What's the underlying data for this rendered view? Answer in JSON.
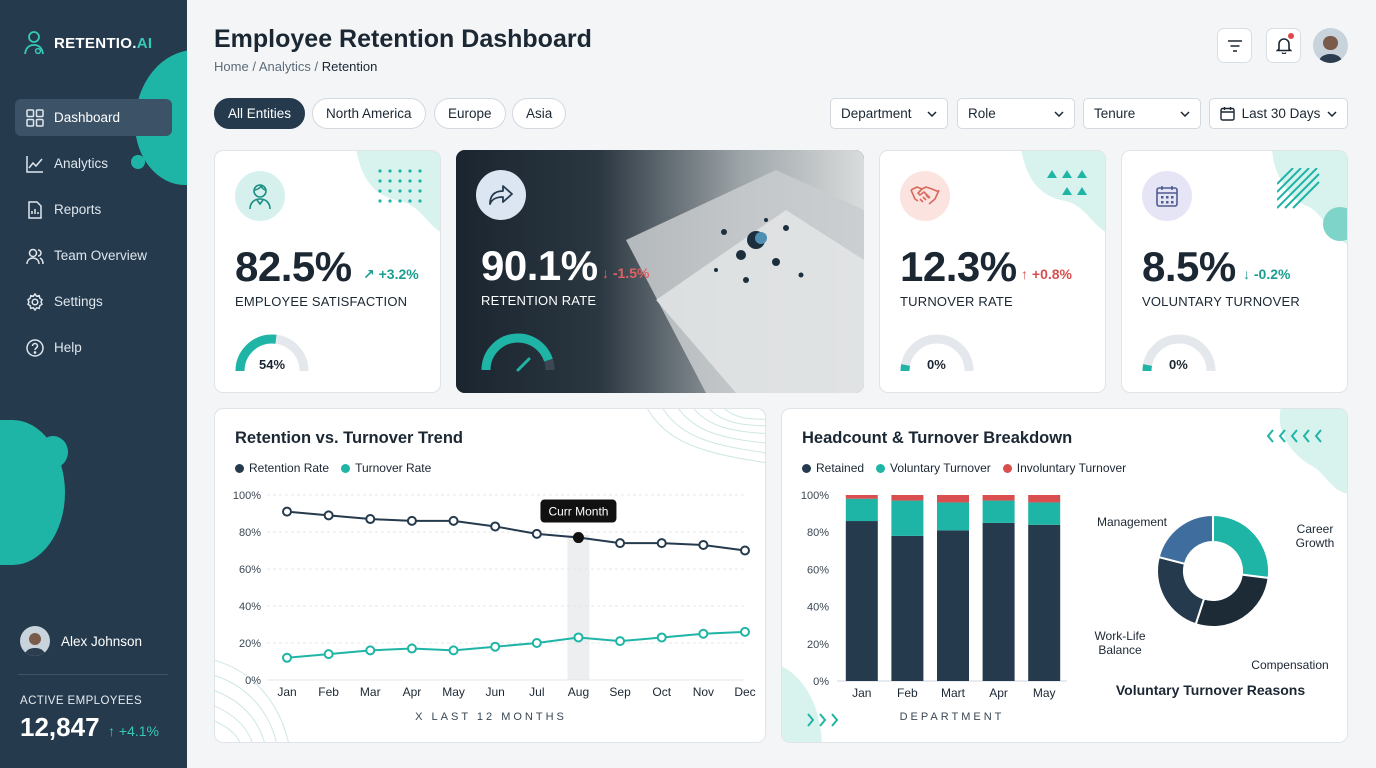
{
  "sidebar": {
    "logo_main": "RETENTIO.",
    "logo_ai": "AI",
    "nav": [
      {
        "label": "Dashboard",
        "icon": "grid-icon",
        "active": true
      },
      {
        "label": "Analytics",
        "icon": "line-chart-icon"
      },
      {
        "label": "Reports",
        "icon": "document-icon"
      },
      {
        "label": "Team Overview",
        "icon": "users-icon"
      },
      {
        "label": "Settings",
        "icon": "gear-icon"
      },
      {
        "label": "Help",
        "icon": "help-icon"
      }
    ],
    "user_name": "Alex Johnson",
    "active_employees_label": "ACTIVE EMPLOYEES",
    "active_employees_value": "12,847",
    "active_employees_delta": "↑ +4.1%"
  },
  "header": {
    "title": "Employee Retention Dashboard",
    "breadcrumb": [
      "Home",
      "Analytics",
      "Retention"
    ]
  },
  "filters": {
    "entities": [
      "All Entities",
      "North America",
      "Europe",
      "Asia"
    ],
    "selects": [
      "Department",
      "Role",
      "Tenure"
    ],
    "date_range": "Last 30 Days"
  },
  "kpis": [
    {
      "value": "82.5%",
      "delta": "↗ +3.2%",
      "label": "EMPLOYEE SATISFACTION",
      "gauge_text": "54%",
      "gauge_fill": 0.54
    },
    {
      "value": "90.1%",
      "delta": "↓ -1.5%",
      "label": "RETENTION RATE",
      "gauge_fill": 0.9
    },
    {
      "value": "12.3%",
      "delta": "↑ +0.8%",
      "label": "TURNOVER RATE",
      "gauge_text": "0%",
      "gauge_fill": 0.06
    },
    {
      "value": "8.5%",
      "delta": "↓ -0.2%",
      "label": "VOLUNTARY TURNOVER",
      "gauge_text": "0%",
      "gauge_fill": 0.06
    }
  ],
  "colors": {
    "navy": "#253a4d",
    "teal": "#1fb5a6",
    "red": "#d94f4f"
  },
  "trend": {
    "title": "Retention vs. Turnover Trend",
    "tooltip": "Curr Month",
    "x_caption": "X LAST 12 MONTHS"
  },
  "breakdown": {
    "title": "Headcount & Turnover Breakdown",
    "x_caption": "DEPARTMENT",
    "donut_title": "Voluntary Turnover Reasons"
  },
  "chart_data": [
    {
      "type": "line",
      "title": "Retention vs. Turnover Trend",
      "x": [
        "Jan",
        "Feb",
        "Mar",
        "Apr",
        "May",
        "Jun",
        "Jul",
        "Aug",
        "Sep",
        "Oct",
        "Nov",
        "Dec"
      ],
      "series": [
        {
          "name": "Retention Rate",
          "values": [
            91,
            89,
            87,
            86,
            86,
            83,
            79,
            77,
            74,
            74,
            73,
            70
          ]
        },
        {
          "name": "Turnover Rate",
          "values": [
            12,
            14,
            16,
            17,
            16,
            18,
            20,
            23,
            21,
            23,
            25,
            26
          ]
        }
      ],
      "yticks": [
        "0%",
        "20%",
        "40%",
        "60%",
        "80%",
        "100%"
      ],
      "ylim": [
        0,
        100
      ],
      "highlight": "Aug"
    },
    {
      "type": "bar",
      "stacked": true,
      "categories": [
        "Jan",
        "Feb",
        "Mart",
        "Apr",
        "May"
      ],
      "series": [
        {
          "name": "Retained",
          "values": [
            86,
            78,
            81,
            85,
            84
          ]
        },
        {
          "name": "Voluntary Turnover",
          "values": [
            12,
            19,
            15,
            12,
            12
          ]
        },
        {
          "name": "Involuntary Turnover",
          "values": [
            2,
            3,
            4,
            3,
            4
          ]
        }
      ],
      "yticks": [
        "0%",
        "20%",
        "40%",
        "60%",
        "80%",
        "100%"
      ],
      "ylim": [
        0,
        100
      ]
    },
    {
      "type": "pie",
      "donut": true,
      "title": "Voluntary Turnover Reasons",
      "labels": [
        "Career Growth",
        "Compensation",
        "Work-Life Balance",
        "Management"
      ],
      "values": [
        27,
        28,
        24,
        21
      ]
    }
  ]
}
